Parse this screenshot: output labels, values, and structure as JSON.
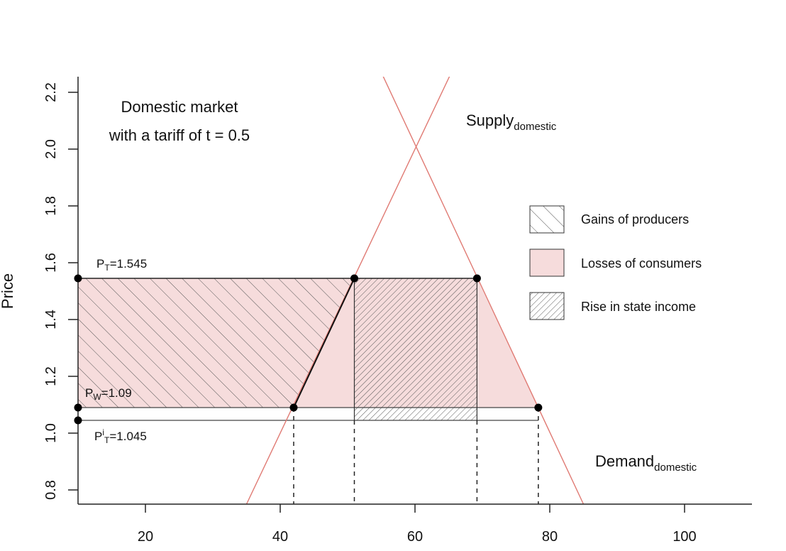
{
  "chart_data": {
    "type": "line",
    "title_line1": "Domestic market",
    "title_line2": "with a tariff of t = 0.5",
    "xlabel": "",
    "ylabel": "Price",
    "xlim": [
      10,
      110
    ],
    "ylim": [
      0.75,
      2.25
    ],
    "x_ticks": [
      20,
      40,
      60,
      80,
      100
    ],
    "y_ticks": [
      0.8,
      1.0,
      1.2,
      1.4,
      1.6,
      1.8,
      2.0,
      2.2
    ],
    "grid": false,
    "supply": {
      "label_main": "Supply",
      "label_sub": "domestic",
      "points": [
        [
          35,
          0.75
        ],
        [
          65.2,
          2.26
        ]
      ],
      "color": "#e07a73"
    },
    "demand": {
      "label_main": "Demand",
      "label_sub": "domestic",
      "points": [
        [
          55.2,
          2.26
        ],
        [
          85,
          0.75
        ]
      ],
      "color": "#e07a73"
    },
    "price_levels": [
      {
        "key": "pt",
        "prefix": "P",
        "sub": "T",
        "sup": "",
        "suffix": "=1.545",
        "y": 1.545
      },
      {
        "key": "pw",
        "prefix": "P",
        "sub": "W",
        "sup": "",
        "suffix": "=1.09",
        "y": 1.09
      },
      {
        "key": "pit",
        "prefix": "P",
        "sub": "T",
        "sup": "i",
        "suffix": "=1.045",
        "y": 1.045
      }
    ],
    "quantities": [
      42,
      51,
      69.2,
      78.3
    ],
    "points": [
      {
        "x": 10,
        "y": 1.545
      },
      {
        "x": 51,
        "y": 1.545
      },
      {
        "x": 69.2,
        "y": 1.545
      },
      {
        "x": 10,
        "y": 1.09
      },
      {
        "x": 42,
        "y": 1.09
      },
      {
        "x": 78.3,
        "y": 1.09
      },
      {
        "x": 10,
        "y": 1.045
      }
    ],
    "legend": {
      "placement": "right",
      "items": [
        {
          "key": "producers",
          "label": "Gains of producers"
        },
        {
          "key": "consumers",
          "label": "Losses of consumers"
        },
        {
          "key": "state",
          "label": "Rise in state income"
        }
      ]
    },
    "colors": {
      "consumer_fill": "#f6dcdc",
      "hatch": "#555555",
      "axis": "#222222",
      "curve": "#e07a73"
    }
  }
}
